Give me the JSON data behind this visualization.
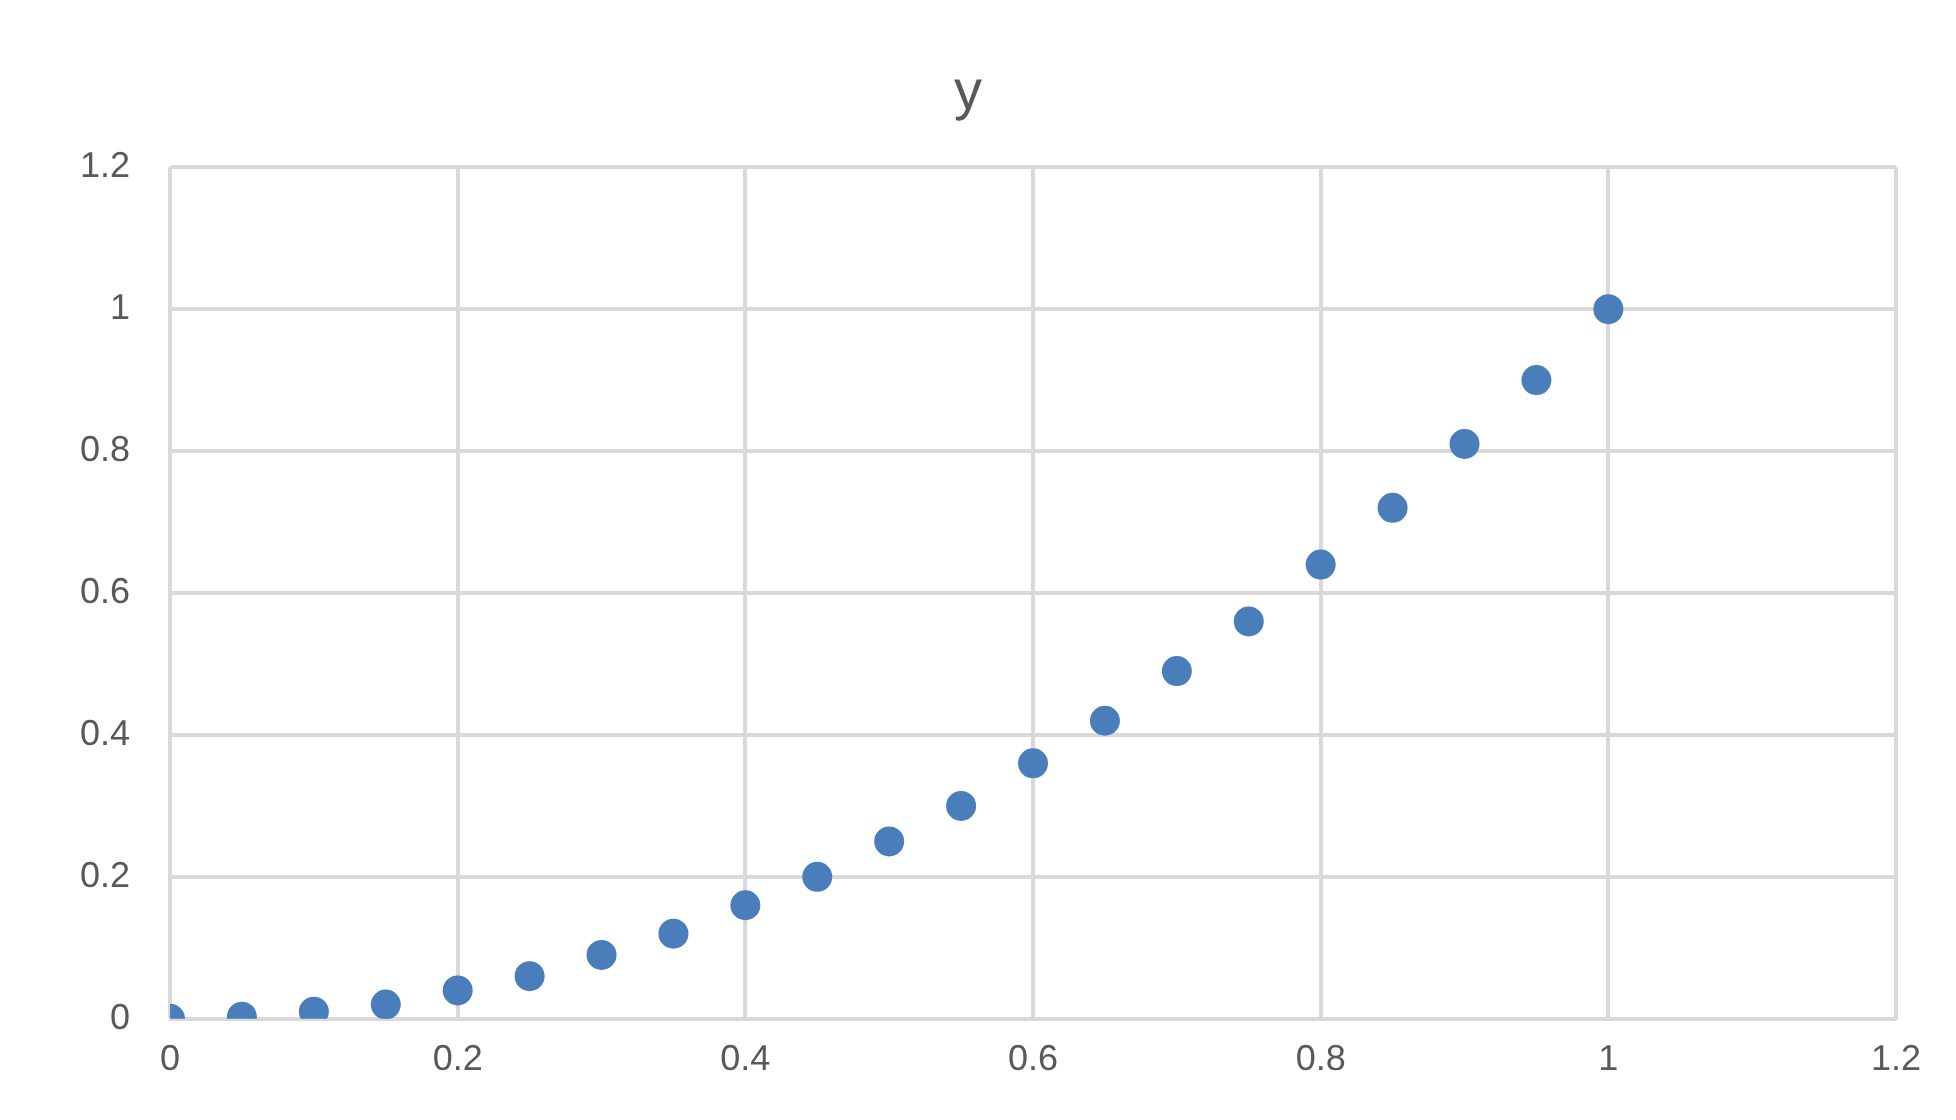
{
  "chart_data": {
    "type": "scatter",
    "title": "y",
    "x": [
      0,
      0.05,
      0.1,
      0.15,
      0.2,
      0.25,
      0.3,
      0.35,
      0.4,
      0.45,
      0.5,
      0.55,
      0.6,
      0.65,
      0.7,
      0.75,
      0.8,
      0.85,
      0.9,
      0.95,
      1
    ],
    "series": [
      {
        "color": "#4a7ebb",
        "values": [
          0,
          0.003,
          0.01,
          0.02,
          0.04,
          0.06,
          0.09,
          0.12,
          0.16,
          0.2,
          0.25,
          0.3,
          0.36,
          0.42,
          0.49,
          0.56,
          0.64,
          0.72,
          0.81,
          0.9,
          1
        ]
      }
    ],
    "xlim": [
      0,
      1.2
    ],
    "xticks": [
      0,
      0.2,
      0.4,
      0.6,
      0.8,
      1,
      1.2
    ],
    "ylim": [
      0,
      1.2
    ],
    "yticks": [
      0,
      0.2,
      0.4,
      0.6,
      0.8,
      1,
      1.2
    ],
    "grid": true,
    "legend": false,
    "marker": "circle"
  }
}
